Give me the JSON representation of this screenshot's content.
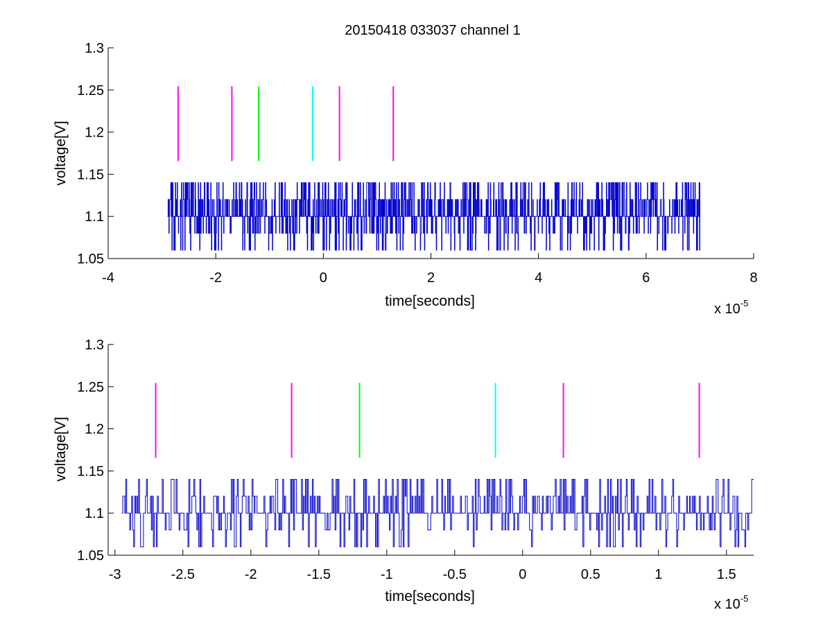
{
  "figure": {
    "title": "20150418 033037 channel 1",
    "signal_color": "#0000cc",
    "marker_colors": {
      "magenta": "#ff00ff",
      "green": "#00ff00",
      "cyan": "#00ffff"
    }
  },
  "chart_data": [
    {
      "type": "line",
      "title": "20150418 033037 channel 1",
      "xlabel": "time[seconds]",
      "ylabel": "voltage[V]",
      "x_multiplier": "x 10",
      "x_exponent": "-5",
      "xlim": [
        -4,
        8
      ],
      "ylim": [
        1.05,
        1.3
      ],
      "xticks": [
        -4,
        -2,
        0,
        2,
        4,
        6,
        8
      ],
      "xtick_labels": [
        "-4",
        "-2",
        "0",
        "2",
        "4",
        "6",
        "8"
      ],
      "yticks": [
        1.05,
        1.1,
        1.15,
        1.2,
        1.25,
        1.3
      ],
      "ytick_labels": [
        "1.05",
        "1.1",
        "1.15",
        "1.2",
        "1.25",
        "1.3"
      ],
      "grid": false,
      "series": [
        {
          "values_x_range": [
            -2.9,
            7.0
          ],
          "levels": [
            1.06,
            1.08,
            1.1,
            1.12,
            1.14
          ],
          "baseline": 1.1,
          "style": "step"
        }
      ],
      "markers": [
        {
          "x": -2.7,
          "y_range": [
            1.1655,
            1.2545
          ],
          "color": "magenta"
        },
        {
          "x": -1.7,
          "y_range": [
            1.1655,
            1.2545
          ],
          "color": "magenta"
        },
        {
          "x": -1.2,
          "y_range": [
            1.1655,
            1.2545
          ],
          "color": "green"
        },
        {
          "x": -0.2,
          "y_range": [
            1.1655,
            1.2545
          ],
          "color": "cyan"
        },
        {
          "x": 0.3,
          "y_range": [
            1.1655,
            1.2545
          ],
          "color": "magenta"
        },
        {
          "x": 1.3,
          "y_range": [
            1.1655,
            1.2545
          ],
          "color": "magenta"
        }
      ]
    },
    {
      "type": "line",
      "title": "",
      "xlabel": "time[seconds]",
      "ylabel": "voltage[V]",
      "x_multiplier": "x 10",
      "x_exponent": "-5",
      "xlim": [
        -3.05,
        1.7
      ],
      "ylim": [
        1.05,
        1.3
      ],
      "xticks": [
        -3,
        -2.5,
        -2,
        -1.5,
        -1,
        -0.5,
        0,
        0.5,
        1,
        1.5
      ],
      "xtick_labels": [
        "-3",
        "-2.5",
        "-2",
        "-1.5",
        "-1",
        "-0.5",
        "0",
        "0.5",
        "1",
        "1.5"
      ],
      "yticks": [
        1.05,
        1.1,
        1.15,
        1.2,
        1.25,
        1.3
      ],
      "ytick_labels": [
        "1.05",
        "1.1",
        "1.15",
        "1.2",
        "1.25",
        "1.3"
      ],
      "grid": false,
      "series": [
        {
          "values_x_range": [
            -2.95,
            1.7
          ],
          "levels": [
            1.06,
            1.08,
            1.1,
            1.12,
            1.14
          ],
          "baseline": 1.1,
          "style": "step"
        }
      ],
      "markers": [
        {
          "x": -2.7,
          "y_range": [
            1.1655,
            1.2545
          ],
          "color": "magenta"
        },
        {
          "x": -1.7,
          "y_range": [
            1.1655,
            1.2545
          ],
          "color": "magenta"
        },
        {
          "x": -1.2,
          "y_range": [
            1.1655,
            1.2545
          ],
          "color": "green"
        },
        {
          "x": -0.2,
          "y_range": [
            1.1655,
            1.2545
          ],
          "color": "cyan"
        },
        {
          "x": 0.3,
          "y_range": [
            1.1655,
            1.2545
          ],
          "color": "magenta"
        },
        {
          "x": 1.3,
          "y_range": [
            1.1655,
            1.2545
          ],
          "color": "magenta"
        }
      ]
    }
  ]
}
